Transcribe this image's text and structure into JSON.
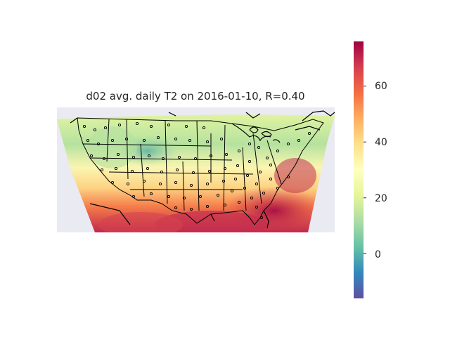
{
  "title": "d02 avg. daily T2 on 2016-01-10, R=0.40",
  "colorbar": {
    "colormap": "Spectral_r",
    "range": [
      -16,
      76
    ],
    "ticks": [
      "60",
      "40",
      "20",
      "0"
    ],
    "tick_values": [
      60,
      40,
      20,
      0
    ]
  },
  "colors": {
    "background": "#ffffff",
    "axes_background": "#eaeaf2",
    "station_marker_edge": "#000000",
    "borders": "#000000"
  },
  "map": {
    "domain": "CONUS (d02)",
    "projection": "Lambert Conformal",
    "features": [
      "coastlines",
      "state-borders",
      "station-markers"
    ]
  }
}
